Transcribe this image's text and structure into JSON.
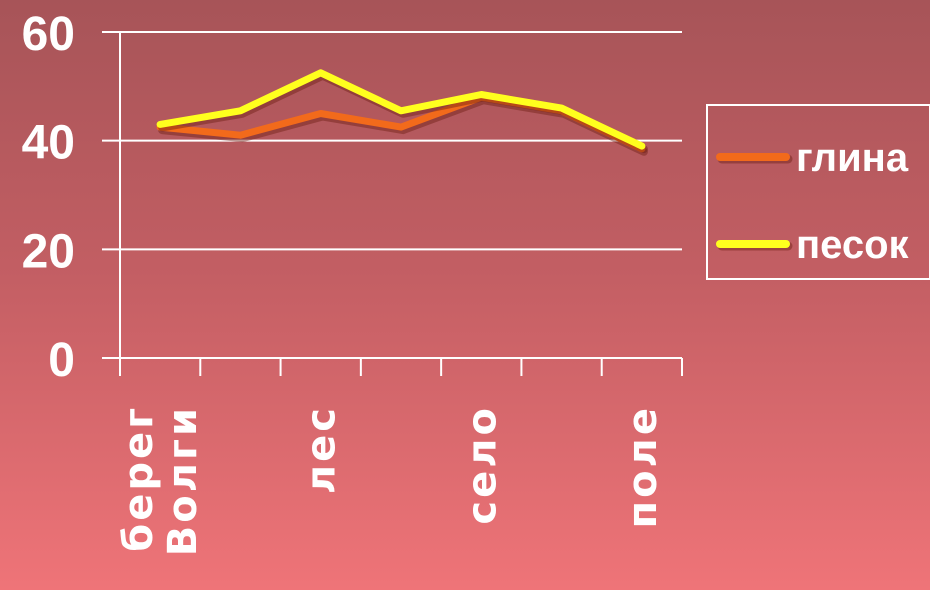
{
  "chart_data": {
    "type": "line",
    "categories": [
      "берег Волги",
      "",
      "лес",
      "",
      "село",
      "",
      "поле"
    ],
    "category_label_lines": [
      [
        "берег",
        "Волги"
      ],
      [],
      [
        "лес"
      ],
      [],
      [
        "село"
      ],
      [],
      [
        "поле"
      ]
    ],
    "series": [
      {
        "name": "глина",
        "color": "#f26a1b",
        "values": [
          42.5,
          41,
          45,
          42.5,
          48,
          45.5,
          38.5
        ]
      },
      {
        "name": "песок",
        "color": "#ffff1e",
        "values": [
          43,
          45.5,
          52.5,
          45.5,
          48.5,
          46,
          39
        ]
      }
    ],
    "ylim": [
      0,
      60
    ],
    "yticks": [
      "0",
      "20",
      "40",
      "60"
    ],
    "grid": true,
    "legend_position": "right",
    "title": "",
    "xlabel": "",
    "ylabel": ""
  }
}
